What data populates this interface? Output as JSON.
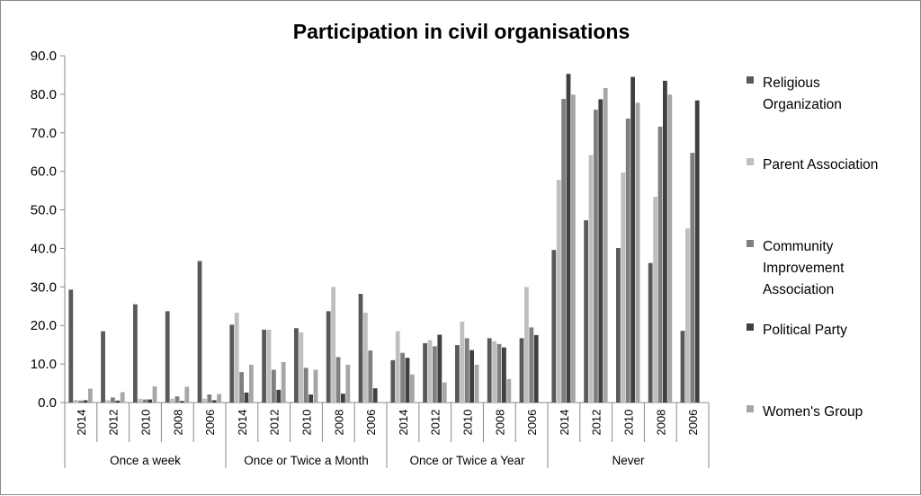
{
  "chart_data": {
    "type": "bar",
    "title": "Participation in civil organisations",
    "xlabel": "",
    "ylabel": "",
    "ylim": [
      0,
      90
    ],
    "yticks": [
      "0.0",
      "10.0",
      "20.0",
      "30.0",
      "40.0",
      "50.0",
      "60.0",
      "70.0",
      "80.0",
      "90.0"
    ],
    "grid": false,
    "legend_position": "right",
    "groups": [
      {
        "label": "Once a week",
        "years": [
          "2014",
          "2012",
          "2010",
          "2008",
          "2006"
        ]
      },
      {
        "label": "Once or Twice a Month",
        "years": [
          "2014",
          "2012",
          "2010",
          "2008",
          "2006"
        ]
      },
      {
        "label": "Once or Twice a Year",
        "years": [
          "2014",
          "2012",
          "2010",
          "2008",
          "2006"
        ]
      },
      {
        "label": "Never",
        "years": [
          "2014",
          "2012",
          "2010",
          "2008",
          "2006"
        ]
      }
    ],
    "series": [
      {
        "name": "Religious Organization",
        "legend_lines": [
          "Religious",
          "Organization"
        ],
        "color": "#595959",
        "values": [
          29.3,
          18.5,
          25.5,
          23.7,
          36.7,
          20.2,
          18.9,
          19.3,
          23.7,
          28.2,
          11.0,
          15.4,
          14.9,
          16.7,
          16.7,
          39.6,
          47.3,
          40.1,
          36.2,
          18.6
        ]
      },
      {
        "name": "Parent Association",
        "legend_lines": [
          "Parent Association"
        ],
        "color": "#bfbfbf",
        "values": [
          0.7,
          0.6,
          1.0,
          1.0,
          1.0,
          23.3,
          18.9,
          18.2,
          30.0,
          23.3,
          18.5,
          16.2,
          21.0,
          15.9,
          30.0,
          57.8,
          64.2,
          59.7,
          53.4,
          45.2
        ]
      },
      {
        "name": "Community Improvement Association",
        "legend_lines": [
          "Community",
          "Improvement",
          "Association"
        ],
        "color": "#7f7f7f",
        "values": [
          0.5,
          1.3,
          0.8,
          1.6,
          2.1,
          7.9,
          8.5,
          9.0,
          11.8,
          13.5,
          12.9,
          14.6,
          16.7,
          15.2,
          19.5,
          78.8,
          76.0,
          73.7,
          71.6,
          64.8
        ]
      },
      {
        "name": "Political Party",
        "legend_lines": [
          "Political Party"
        ],
        "color": "#404040",
        "values": [
          0.6,
          0.5,
          0.8,
          0.4,
          0.6,
          2.6,
          3.3,
          2.1,
          2.3,
          3.7,
          11.6,
          17.6,
          13.6,
          14.3,
          17.5,
          85.3,
          78.7,
          84.5,
          83.5,
          78.4
        ]
      },
      {
        "name": "Women's Group",
        "legend_lines": [
          "Women's Group"
        ],
        "color": "#a6a6a6",
        "values": [
          3.6,
          2.7,
          4.2,
          4.1,
          2.2,
          9.8,
          10.5,
          8.5,
          9.8,
          null,
          7.3,
          5.2,
          9.8,
          6.1,
          null,
          79.9,
          81.6,
          77.8,
          79.9,
          null
        ]
      }
    ]
  }
}
